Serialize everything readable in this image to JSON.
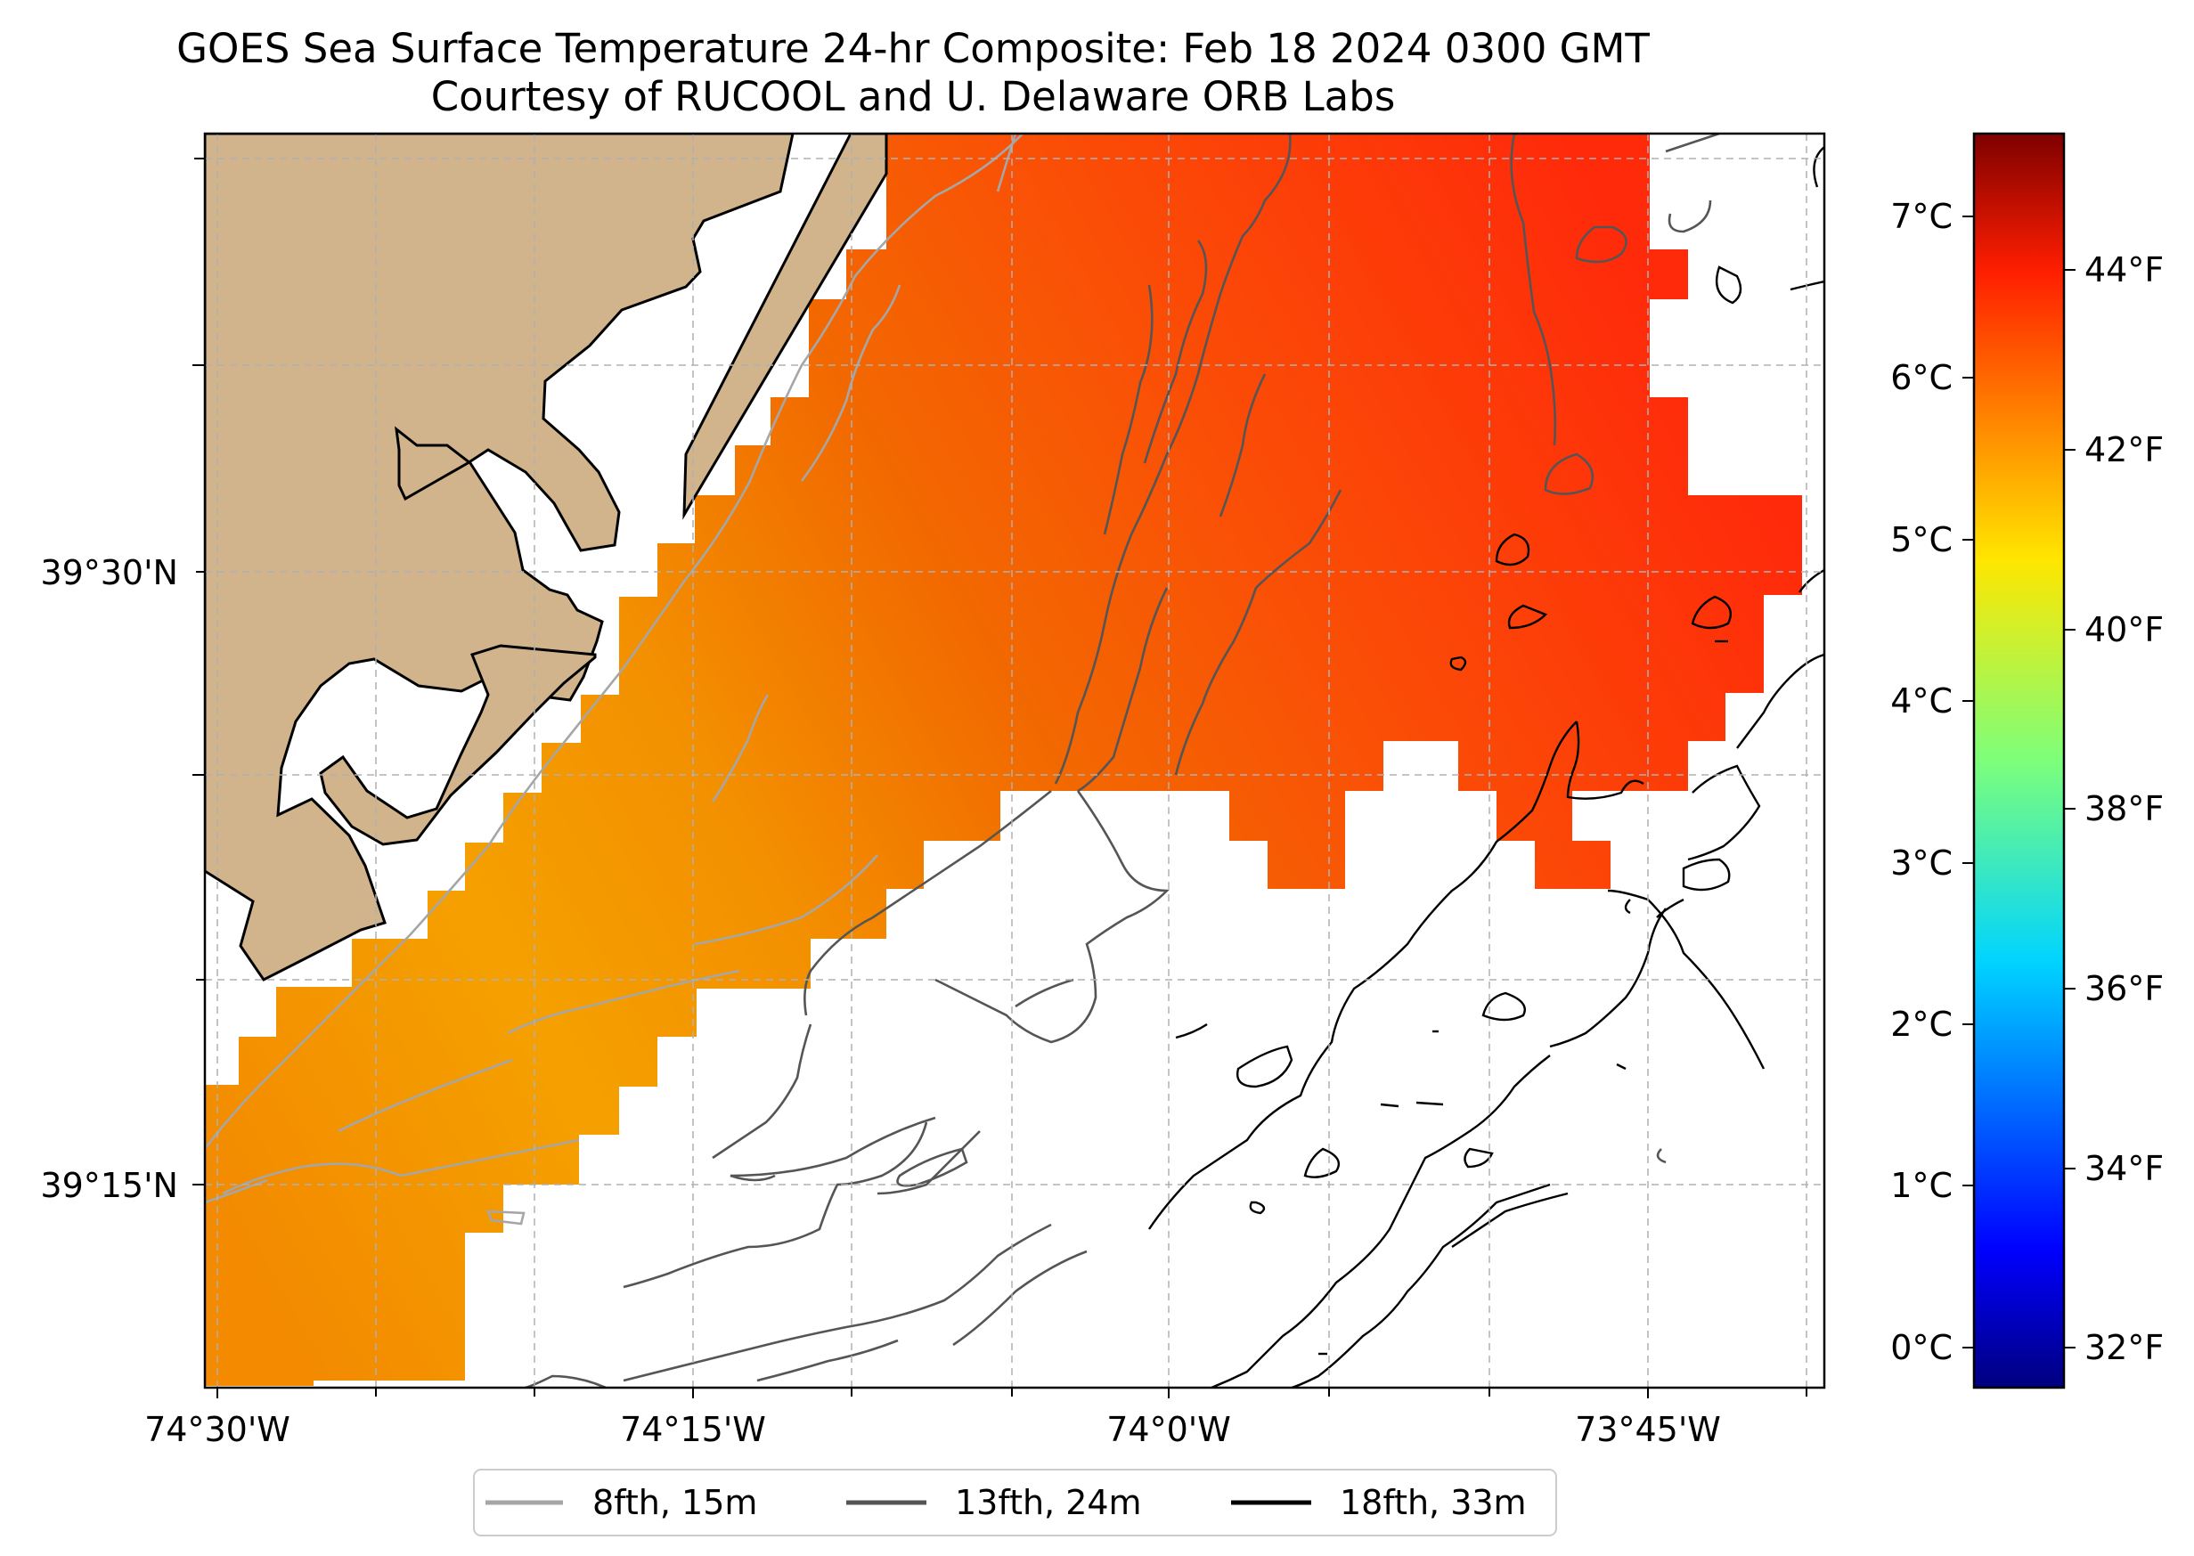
{
  "title": "GOES Sea Surface Temperature 24-hr Composite: Feb 18 2024 0300 GMT",
  "subtitle": "Courtesy of RUCOOL and U. Delaware ORB Labs",
  "x_ticks": [
    "74°30'W",
    "74°15'W",
    "74°0'W",
    "73°45'W"
  ],
  "y_ticks": [
    "39°30'N",
    "39°15'N"
  ],
  "colorbar": {
    "celsius_ticks": [
      "0°C",
      "1°C",
      "2°C",
      "3°C",
      "4°C",
      "5°C",
      "6°C",
      "7°C"
    ],
    "fahrenheit_ticks": [
      "32°F",
      "34°F",
      "36°F",
      "38°F",
      "40°F",
      "42°F",
      "44°F"
    ],
    "colormap": "jet",
    "range_c": [
      -0.3,
      7.5
    ]
  },
  "legend": [
    {
      "label": "8fth, 15m",
      "color": "#a6a6a6"
    },
    {
      "label": "13fth, 24m",
      "color": "#555555"
    },
    {
      "label": "18fth, 33m",
      "color": "#000000"
    }
  ],
  "colors": {
    "land": "#d2b48c",
    "sst_warm_orange": "#f38a00",
    "sst_red": "#ff2a0a"
  }
}
